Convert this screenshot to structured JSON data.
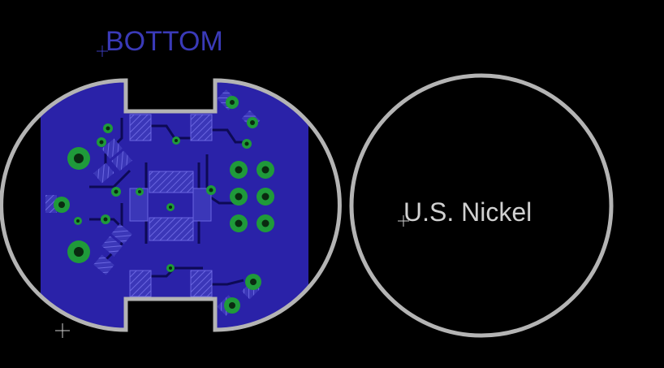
{
  "layout_view": {
    "layer_label": "BOTTOM",
    "reference_label": "U.S. Nickel"
  },
  "colors": {
    "background": "#000000",
    "board_outline": "#b4b4b4",
    "copper_bottom": "#2a22a8",
    "smd_pad": "#4a46c8",
    "via_ring": "#1f9a3a",
    "text_bottom": "#3a3ab8",
    "text_reference": "#d0d0d0"
  },
  "icons": [
    "origin-crosshair-icon",
    "via-icon",
    "smd-pad-icon"
  ]
}
